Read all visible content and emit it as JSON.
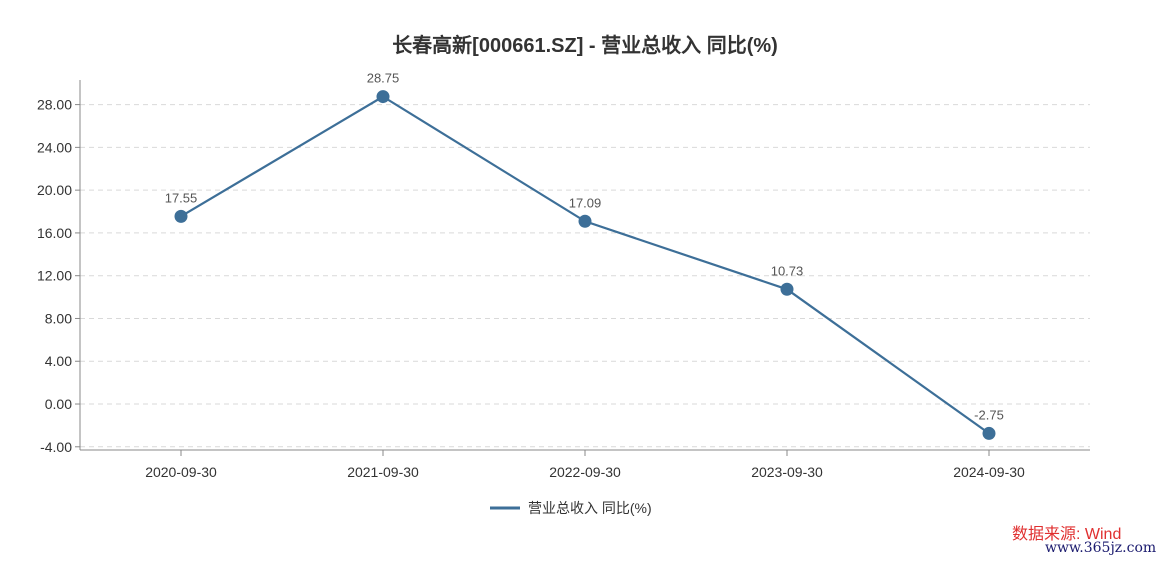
{
  "chart_data": {
    "type": "line",
    "title": "长春高新[000661.SZ] - 营业总收入 同比(%)",
    "categories": [
      "2020-09-30",
      "2021-09-30",
      "2022-09-30",
      "2023-09-30",
      "2024-09-30"
    ],
    "series": [
      {
        "name": "营业总收入 同比(%)",
        "values": [
          17.55,
          28.75,
          17.09,
          10.73,
          -2.75
        ]
      }
    ],
    "data_labels": [
      "17.55",
      "28.75",
      "17.09",
      "10.73",
      "-2.75"
    ],
    "y_ticks": [
      -4,
      0,
      4,
      8,
      12,
      16,
      20,
      24,
      28
    ],
    "y_tick_labels": [
      "-4.00",
      "0.00",
      "4.00",
      "8.00",
      "12.00",
      "16.00",
      "20.00",
      "24.00",
      "28.00"
    ],
    "ylim": [
      -4.3,
      30.3
    ],
    "xlabel": "",
    "ylabel": "",
    "grid": true,
    "legend_position": "bottom-center",
    "colors": {
      "line": "#3d6f98",
      "grid": "#d9d9d9",
      "axis": "#888888"
    }
  },
  "source_text": "数据来源: Wind",
  "watermark_text": "www.365jz.com"
}
